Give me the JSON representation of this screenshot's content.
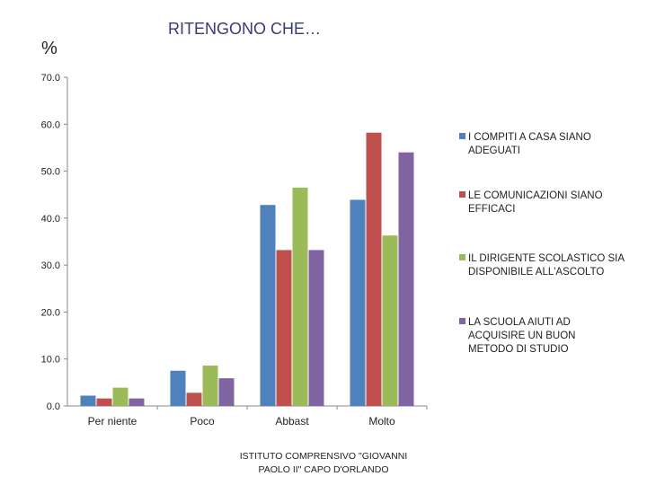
{
  "header": {
    "title": "RITENGONO CHE…",
    "unit_symbol": "%"
  },
  "footer": {
    "line1": "ISTITUTO COMPRENSIVO \"GIOVANNI",
    "line2": "PAOLO II\" CAPO D'ORLANDO"
  },
  "chart_data": {
    "type": "bar",
    "title": "RITENGONO CHE…",
    "ylabel": "%",
    "xlabel": "",
    "ylim": [
      0,
      70
    ],
    "yticks": [
      "0.0",
      "10.0",
      "20.0",
      "30.0",
      "40.0",
      "50.0",
      "60.0",
      "70.0"
    ],
    "grid": false,
    "legend_position": "right",
    "categories": [
      "Per niente",
      "Poco",
      "Abbast",
      "Molto"
    ],
    "series": [
      {
        "name_lines": [
          "I COMPITI A CASA SIANO",
          "ADEGUATI"
        ],
        "color": "#4f81bd",
        "values": [
          2.2,
          7.5,
          42.8,
          43.9
        ]
      },
      {
        "name_lines": [
          "LE COMUNICAZIONI SIANO",
          "EFFICACI"
        ],
        "color": "#c0504d",
        "values": [
          1.6,
          2.8,
          33.2,
          58.2
        ]
      },
      {
        "name_lines": [
          "IL DIRIGENTE SCOLASTICO SIA",
          "DISPONIBILE ALL'ASCOLTO"
        ],
        "color": "#9bbb59",
        "values": [
          3.9,
          8.6,
          46.5,
          36.3
        ]
      },
      {
        "name_lines": [
          "LA SCUOLA AIUTI  AD",
          "ACQUISIRE UN BUON",
          "METODO DI STUDIO"
        ],
        "color": "#8064a2",
        "values": [
          1.6,
          5.9,
          33.2,
          54.0
        ]
      }
    ]
  }
}
